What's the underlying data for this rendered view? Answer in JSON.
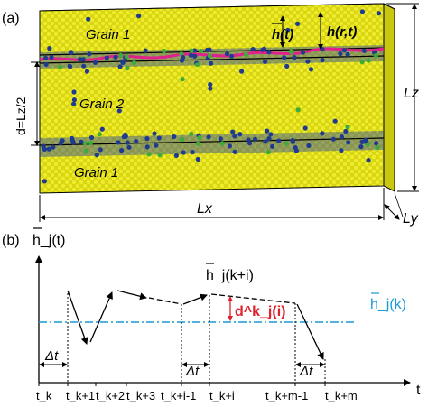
{
  "panel_a": {
    "label": "(a)",
    "grain_top": "Grain 1",
    "grain_mid": "Grain 2",
    "grain_bot": "Grain 1",
    "h_bar_t": "h(t)",
    "h_rt": "h(r,t)",
    "d_label": "d=Lz/2",
    "lz": "Lz",
    "lx": "Lx",
    "ly": "Ly",
    "colors": {
      "atom_bulk": "#e8e61a",
      "atom_defect": "#1f3a8f",
      "atom_green": "#3caa3c",
      "interface_line": "#e0208c"
    }
  },
  "panel_b": {
    "label": "(b)",
    "ylabel": "h_j(t)",
    "x_axis_letter": "t",
    "mean_label": "h_j(k)",
    "point_label": "h_j(k+i)",
    "d_label": "d^k_j(i)",
    "dt": "Δt",
    "ticks": [
      "t_k",
      "t_k+1",
      "t_k+2",
      "t_k+3",
      "t_k+i-1",
      "t_k+i",
      "t_k+m-1",
      "t_k+m"
    ],
    "colors": {
      "mean_line": "#1a9ad6",
      "d_label": "#e0202c"
    }
  }
}
